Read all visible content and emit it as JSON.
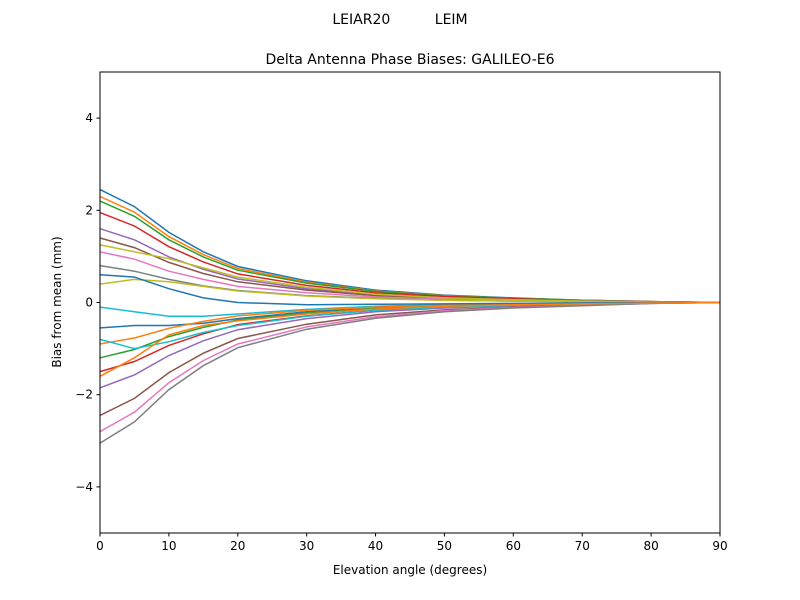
{
  "chart_data": {
    "type": "line",
    "suptitle": "LEIAR20          LEIM",
    "title": "Delta Antenna Phase Biases: GALILEO-E6",
    "xlabel": "Elevation angle (degrees)",
    "ylabel": "Bias from mean (mm)",
    "xlim": [
      0,
      90
    ],
    "ylim": [
      -5,
      5
    ],
    "xticks": [
      0,
      10,
      20,
      30,
      40,
      50,
      60,
      70,
      80,
      90
    ],
    "yticks": [
      -4,
      -2,
      0,
      2,
      4
    ],
    "ytick_labels": [
      "−4",
      "−2",
      "0",
      "2",
      "4"
    ],
    "grid": false,
    "colors": [
      "#1f77b4",
      "#ff7f0e",
      "#2ca02c",
      "#d62728",
      "#9467bd",
      "#8c564b",
      "#e377c2",
      "#7f7f7f",
      "#bcbd22",
      "#17becf"
    ],
    "x": [
      0,
      5,
      10,
      15,
      20,
      30,
      40,
      50,
      60,
      70,
      80,
      90
    ],
    "series": [
      {
        "values": [
          2.45,
          2.08,
          1.52,
          1.1,
          0.78,
          0.47,
          0.27,
          0.16,
          0.1,
          0.05,
          0.02,
          0
        ]
      },
      {
        "values": [
          2.3,
          1.96,
          1.43,
          1.04,
          0.74,
          0.44,
          0.25,
          0.15,
          0.09,
          0.05,
          0.02,
          0
        ]
      },
      {
        "values": [
          2.2,
          1.87,
          1.36,
          0.99,
          0.7,
          0.42,
          0.24,
          0.14,
          0.09,
          0.05,
          0.02,
          0
        ]
      },
      {
        "values": [
          1.95,
          1.66,
          1.21,
          0.88,
          0.62,
          0.37,
          0.21,
          0.13,
          0.08,
          0.04,
          0.02,
          0
        ]
      },
      {
        "values": [
          1.6,
          1.36,
          0.99,
          0.72,
          0.51,
          0.3,
          0.18,
          0.1,
          0.06,
          0.04,
          0.01,
          0
        ]
      },
      {
        "values": [
          1.4,
          1.19,
          0.87,
          0.63,
          0.45,
          0.27,
          0.15,
          0.09,
          0.06,
          0.03,
          0.01,
          0
        ]
      },
      {
        "values": [
          1.1,
          0.94,
          0.68,
          0.5,
          0.35,
          0.21,
          0.12,
          0.07,
          0.04,
          0.02,
          0.01,
          0
        ]
      },
      {
        "values": [
          0.8,
          0.68,
          0.5,
          0.36,
          0.26,
          0.15,
          0.09,
          0.05,
          0.03,
          0.02,
          0.01,
          0
        ]
      },
      {
        "values": [
          0.4,
          0.5,
          0.45,
          0.35,
          0.25,
          0.14,
          0.08,
          0.05,
          0.03,
          0.02,
          0.01,
          0
        ]
      },
      {
        "values": [
          -0.1,
          -0.2,
          -0.3,
          -0.3,
          -0.25,
          -0.15,
          -0.08,
          -0.05,
          -0.03,
          -0.02,
          -0.01,
          0
        ]
      },
      {
        "values": [
          -0.55,
          -0.5,
          -0.5,
          -0.45,
          -0.35,
          -0.2,
          -0.1,
          -0.06,
          -0.04,
          -0.02,
          -0.01,
          0
        ]
      },
      {
        "values": [
          -0.9,
          -0.77,
          -0.56,
          -0.41,
          -0.29,
          -0.17,
          -0.1,
          -0.06,
          -0.04,
          -0.02,
          -0.01,
          0
        ]
      },
      {
        "values": [
          -1.2,
          -1.02,
          -0.74,
          -0.54,
          -0.38,
          -0.23,
          -0.13,
          -0.08,
          -0.05,
          -0.03,
          -0.01,
          0
        ]
      },
      {
        "values": [
          -1.5,
          -1.28,
          -0.93,
          -0.68,
          -0.48,
          -0.29,
          -0.17,
          -0.1,
          -0.06,
          -0.03,
          -0.01,
          0
        ]
      },
      {
        "values": [
          -1.85,
          -1.57,
          -1.15,
          -0.83,
          -0.59,
          -0.35,
          -0.2,
          -0.12,
          -0.07,
          -0.04,
          -0.01,
          0
        ]
      },
      {
        "values": [
          -2.45,
          -2.08,
          -1.52,
          -1.1,
          -0.78,
          -0.47,
          -0.27,
          -0.16,
          -0.1,
          -0.05,
          -0.02,
          0
        ]
      },
      {
        "values": [
          -2.8,
          -2.38,
          -1.74,
          -1.26,
          -0.9,
          -0.53,
          -0.31,
          -0.18,
          -0.11,
          -0.06,
          -0.02,
          0
        ]
      },
      {
        "values": [
          -3.05,
          -2.59,
          -1.89,
          -1.37,
          -0.98,
          -0.58,
          -0.34,
          -0.2,
          -0.12,
          -0.07,
          -0.02,
          0
        ]
      },
      {
        "values": [
          1.25,
          1.1,
          0.95,
          0.75,
          0.55,
          0.33,
          0.18,
          0.1,
          0.06,
          0.03,
          0.01,
          0
        ]
      },
      {
        "values": [
          -0.8,
          -1.0,
          -0.85,
          -0.65,
          -0.5,
          -0.3,
          -0.17,
          -0.1,
          -0.06,
          -0.03,
          -0.01,
          0
        ]
      },
      {
        "values": [
          0.6,
          0.55,
          0.3,
          0.1,
          0.0,
          -0.05,
          -0.04,
          -0.03,
          -0.02,
          -0.01,
          0,
          0
        ]
      },
      {
        "values": [
          -1.6,
          -1.2,
          -0.7,
          -0.5,
          -0.4,
          -0.25,
          -0.14,
          -0.08,
          -0.05,
          -0.03,
          -0.01,
          0
        ]
      }
    ]
  }
}
